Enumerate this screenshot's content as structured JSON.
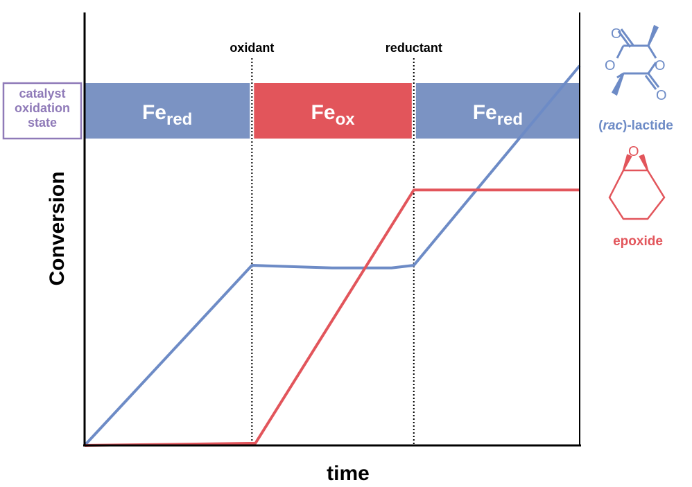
{
  "chart_data": {
    "type": "line",
    "title": "",
    "xlabel": "time",
    "ylabel": "Conversion",
    "xlim": [
      0,
      100
    ],
    "ylim": [
      0,
      100
    ],
    "grid": false,
    "events": [
      {
        "label": "oxidant",
        "x": 33.8
      },
      {
        "label": "reductant",
        "x": 66.5
      }
    ],
    "state_band": {
      "label": "catalyst oxidation state",
      "label_lines": [
        "catalyst",
        "oxidation",
        "state"
      ],
      "segments": [
        {
          "base": "Fe",
          "sub": "red",
          "from": 0,
          "to": 33.8,
          "color": "#7b93c3"
        },
        {
          "base": "Fe",
          "sub": "ox",
          "from": 33.8,
          "to": 66.5,
          "color": "#e2555b"
        },
        {
          "base": "Fe",
          "sub": "red",
          "from": 66.5,
          "to": 100,
          "color": "#7b93c3"
        }
      ]
    },
    "series": [
      {
        "name": "(rac)-lactide",
        "color": "#6d8bc6",
        "x": [
          0,
          33.8,
          50,
          62,
          66.5,
          100
        ],
        "y": [
          0,
          41.6,
          41,
          41,
          41.6,
          87.7
        ]
      },
      {
        "name": "epoxide",
        "color": "#e2555b",
        "x": [
          0,
          34.5,
          66.5,
          100
        ],
        "y": [
          0,
          0.5,
          59,
          59
        ]
      }
    ],
    "legend": {
      "placement": "right",
      "entries": [
        {
          "pre": "(",
          "italic": "rac",
          "post": ")-lactide",
          "color": "#6d8bc6"
        },
        {
          "text": "epoxide",
          "color": "#e2555b"
        }
      ]
    }
  }
}
